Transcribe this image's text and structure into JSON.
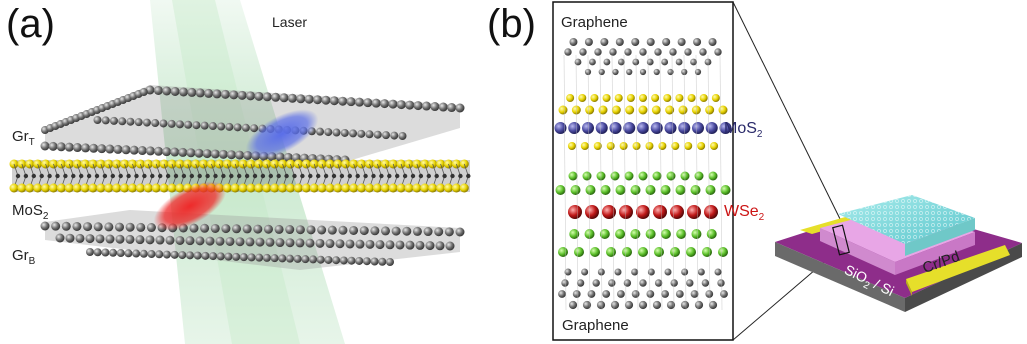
{
  "panel_a": {
    "letter": "(a)",
    "laser_label": "Laser",
    "layers": [
      {
        "base": "Gr",
        "sub": "T"
      },
      {
        "base": "MoS",
        "sub": "2"
      },
      {
        "base": "Gr",
        "sub": "B"
      }
    ]
  },
  "panel_b": {
    "letter": "(b)",
    "top_label": "Graphene",
    "bottom_label": "Graphene",
    "mos2": {
      "base": "MoS",
      "sub": "2"
    },
    "wse2": {
      "base": "WSe",
      "sub": "2"
    },
    "contact_label": "Cr/Pd",
    "substrate": {
      "base": "SiO",
      "sub": "2",
      "rest": "/ Si"
    }
  },
  "colors": {
    "graphene": "#6e6e6e",
    "sulfur": "#e8d300",
    "molybdenum": "#4a4aa0",
    "selenium": "#5cc02a",
    "tungsten": "#c01818",
    "laser": "#9fd7a8",
    "exciton_blue": "#5a6ee8",
    "exciton_red": "#ee2a2a",
    "contact": "#e6df2a",
    "substrate": "#8e2d8a",
    "hbn_top": "#7fd6d6"
  }
}
